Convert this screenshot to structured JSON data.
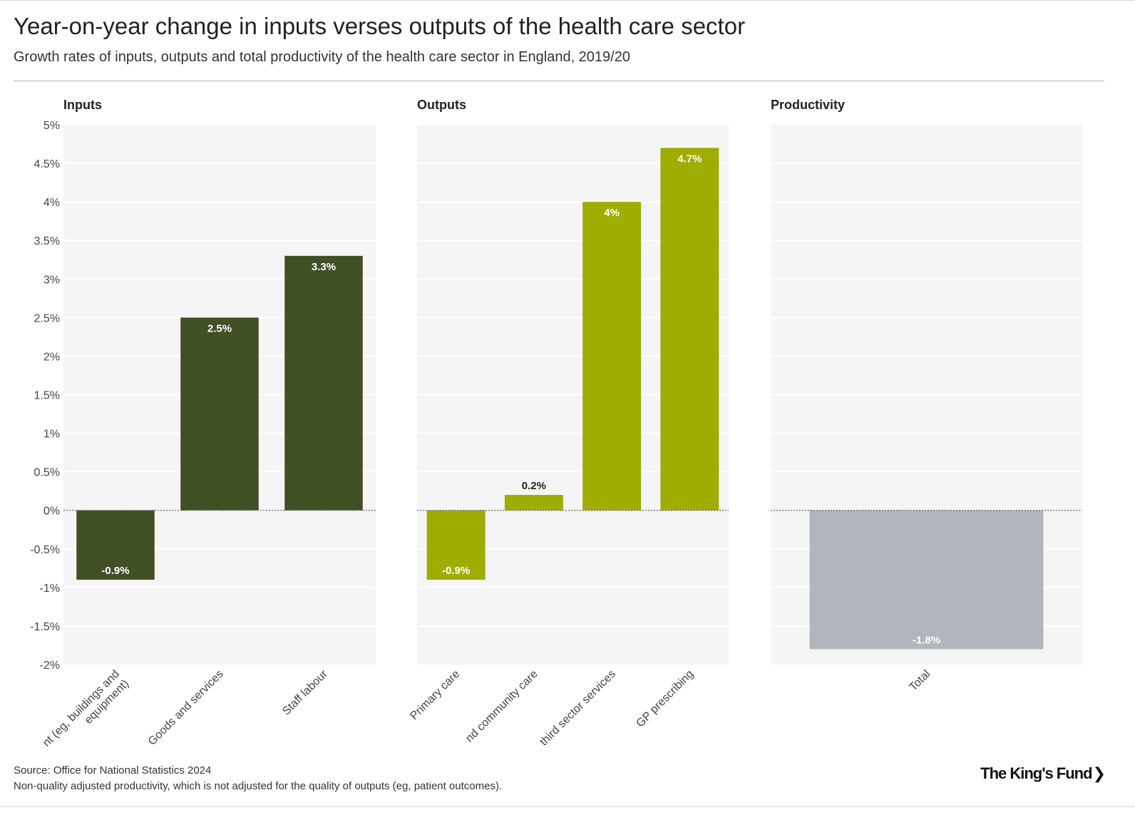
{
  "header": {
    "title": "Year-on-year change in inputs verses outputs of the health care sector",
    "subtitle": "Growth rates of inputs, outputs and total productivity of the health care sector in England, 2019/20"
  },
  "footer": {
    "source": "Source: Office for National Statistics 2024",
    "note": "Non-quality adjusted productivity, which is not adjusted for the quality of outputs (eg, patient outcomes).",
    "logo_text": "The King's Fund",
    "logo_chevron": "❯"
  },
  "chart_data": {
    "type": "bar",
    "title": "Year-on-year change in inputs verses outputs of the health care sector",
    "subtitle": "Growth rates of inputs, outputs and total productivity of the health care sector in England, 2019/20",
    "ylim": [
      -2,
      5
    ],
    "yticks": [
      5,
      4.5,
      4,
      3.5,
      3,
      2.5,
      2,
      1.5,
      1,
      0.5,
      0,
      -0.5,
      -1,
      -1.5,
      -2
    ],
    "ytick_labels": [
      "5%",
      "4.5%",
      "4%",
      "3.5%",
      "3%",
      "2.5%",
      "2%",
      "1.5%",
      "1%",
      "0.5%",
      "0%",
      "-0.5%",
      "-1%",
      "-1.5%",
      "-2%"
    ],
    "grid": true,
    "panels": [
      {
        "name": "Inputs",
        "color": "#414f25",
        "categories": [
          "Capital (eg, buildings and equipment)",
          "Goods and services",
          "Staff labour"
        ],
        "tick_labels": [
          [
            "nt (eg, buildings and",
            "equipment)"
          ],
          [
            "Goods and services"
          ],
          [
            "Staff labour"
          ]
        ],
        "values": [
          -0.9,
          2.5,
          3.3
        ],
        "labels": [
          "-0.9%",
          "2.5%",
          "3.3%"
        ]
      },
      {
        "name": "Outputs",
        "color": "#9fad00",
        "categories": [
          "Primary care",
          "Hospital and community care",
          "Non-NHS and third sector services",
          "GP prescribing"
        ],
        "tick_labels": [
          [
            "Primary care"
          ],
          [
            "nd community care"
          ],
          [
            "third sector services"
          ],
          [
            "GP prescribing"
          ]
        ],
        "values": [
          -0.9,
          0.2,
          4,
          4.7
        ],
        "labels": [
          "-0.9%",
          "0.2%",
          "4%",
          "4.7%"
        ]
      },
      {
        "name": "Productivity",
        "color": "#b0b6bb",
        "categories": [
          "Total"
        ],
        "tick_labels": [
          [
            "Total"
          ]
        ],
        "values": [
          -1.8
        ],
        "labels": [
          "-1.8%"
        ]
      }
    ]
  }
}
